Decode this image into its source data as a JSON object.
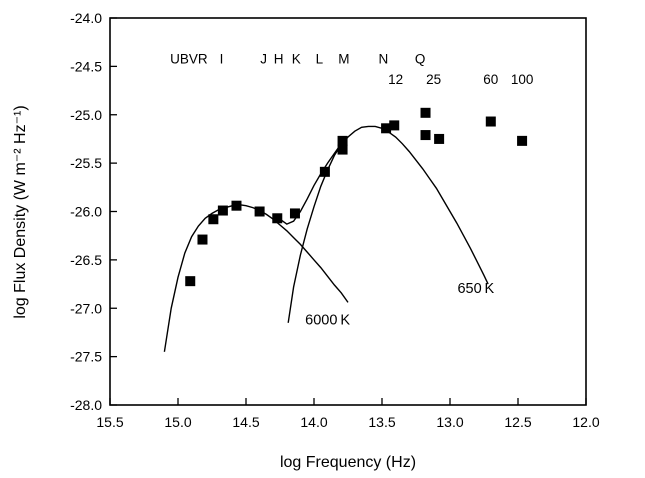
{
  "chart_data": {
    "type": "scatter",
    "title": "",
    "xlabel": "log Frequency (Hz)",
    "ylabel": "log Flux Density (W m⁻² Hz⁻¹)",
    "xlim": [
      15.5,
      12.0
    ],
    "ylim": [
      -28.0,
      -24.0
    ],
    "x_reversed": true,
    "grid": false,
    "x_ticks": [
      "15.5",
      "15.0",
      "14.5",
      "14.0",
      "13.5",
      "13.0",
      "12.5",
      "12.0"
    ],
    "y_ticks": [
      "-24.0",
      "-24.5",
      "-25.0",
      "-25.5",
      "-26.0",
      "-26.5",
      "-27.0",
      "-27.5",
      "-28.0"
    ],
    "band_labels": [
      {
        "text": "UBVR",
        "x": 14.92,
        "y": -24.47
      },
      {
        "text": "I",
        "x": 14.68,
        "y": -24.47
      },
      {
        "text": "J",
        "x": 14.37,
        "y": -24.47
      },
      {
        "text": "H",
        "x": 14.26,
        "y": -24.47
      },
      {
        "text": "K",
        "x": 14.13,
        "y": -24.47
      },
      {
        "text": "L",
        "x": 13.96,
        "y": -24.47
      },
      {
        "text": "M",
        "x": 13.78,
        "y": -24.47
      },
      {
        "text": "N",
        "x": 13.49,
        "y": -24.47
      },
      {
        "text": "12",
        "x": 13.4,
        "y": -24.68
      },
      {
        "text": "Q",
        "x": 13.22,
        "y": -24.47
      },
      {
        "text": "25",
        "x": 13.12,
        "y": -24.68
      },
      {
        "text": "60",
        "x": 12.7,
        "y": -24.68
      },
      {
        "text": "100",
        "x": 12.47,
        "y": -24.68
      }
    ],
    "series": [
      {
        "name": "",
        "type": "scatter",
        "marker": "square",
        "points": [
          {
            "x": 14.91,
            "y": -26.72
          },
          {
            "x": 14.82,
            "y": -26.29
          },
          {
            "x": 14.74,
            "y": -26.08
          },
          {
            "x": 14.67,
            "y": -25.99
          },
          {
            "x": 14.57,
            "y": -25.94
          },
          {
            "x": 14.4,
            "y": -26.0
          },
          {
            "x": 14.27,
            "y": -26.07
          },
          {
            "x": 14.14,
            "y": -26.02
          },
          {
            "x": 13.92,
            "y": -25.59
          },
          {
            "x": 13.79,
            "y": -25.27
          },
          {
            "x": 13.79,
            "y": -25.36
          },
          {
            "x": 13.47,
            "y": -25.14
          },
          {
            "x": 13.41,
            "y": -25.11
          },
          {
            "x": 13.18,
            "y": -24.98
          },
          {
            "x": 13.18,
            "y": -25.21
          },
          {
            "x": 13.08,
            "y": -25.25
          },
          {
            "x": 12.7,
            "y": -25.07
          },
          {
            "x": 12.47,
            "y": -25.27
          }
        ]
      },
      {
        "name": "6000 K",
        "type": "line",
        "points": [
          {
            "x": 15.1,
            "y": -27.45
          },
          {
            "x": 15.05,
            "y": -27.0
          },
          {
            "x": 15.0,
            "y": -26.68
          },
          {
            "x": 14.95,
            "y": -26.43
          },
          {
            "x": 14.9,
            "y": -26.26
          },
          {
            "x": 14.85,
            "y": -26.15
          },
          {
            "x": 14.8,
            "y": -26.07
          },
          {
            "x": 14.75,
            "y": -26.02
          },
          {
            "x": 14.7,
            "y": -25.98
          },
          {
            "x": 14.65,
            "y": -25.96
          },
          {
            "x": 14.6,
            "y": -25.94
          },
          {
            "x": 14.55,
            "y": -25.93
          },
          {
            "x": 14.5,
            "y": -25.94
          },
          {
            "x": 14.45,
            "y": -25.96
          },
          {
            "x": 14.4,
            "y": -25.99
          },
          {
            "x": 14.35,
            "y": -26.03
          },
          {
            "x": 14.3,
            "y": -26.08
          },
          {
            "x": 14.25,
            "y": -26.14
          },
          {
            "x": 14.2,
            "y": -26.2
          },
          {
            "x": 14.15,
            "y": -26.27
          },
          {
            "x": 14.1,
            "y": -26.34
          },
          {
            "x": 14.05,
            "y": -26.42
          },
          {
            "x": 14.0,
            "y": -26.5
          },
          {
            "x": 13.95,
            "y": -26.58
          },
          {
            "x": 13.9,
            "y": -26.67
          },
          {
            "x": 13.85,
            "y": -26.76
          },
          {
            "x": 13.8,
            "y": -26.84
          },
          {
            "x": 13.75,
            "y": -26.94
          }
        ]
      },
      {
        "name": "650 K",
        "type": "line",
        "points": [
          {
            "x": 14.19,
            "y": -27.15
          },
          {
            "x": 14.15,
            "y": -26.78
          },
          {
            "x": 14.1,
            "y": -26.45
          },
          {
            "x": 14.05,
            "y": -26.18
          },
          {
            "x": 14.0,
            "y": -25.95
          },
          {
            "x": 13.95,
            "y": -25.74
          },
          {
            "x": 13.9,
            "y": -25.57
          },
          {
            "x": 13.85,
            "y": -25.42
          },
          {
            "x": 13.8,
            "y": -25.31
          },
          {
            "x": 13.75,
            "y": -25.23
          },
          {
            "x": 13.7,
            "y": -25.17
          },
          {
            "x": 13.65,
            "y": -25.13
          },
          {
            "x": 13.6,
            "y": -25.12
          },
          {
            "x": 13.55,
            "y": -25.12
          },
          {
            "x": 13.5,
            "y": -25.14
          },
          {
            "x": 13.45,
            "y": -25.18
          },
          {
            "x": 13.4,
            "y": -25.23
          },
          {
            "x": 13.35,
            "y": -25.3
          },
          {
            "x": 13.3,
            "y": -25.38
          },
          {
            "x": 13.25,
            "y": -25.47
          },
          {
            "x": 13.2,
            "y": -25.56
          },
          {
            "x": 13.15,
            "y": -25.66
          },
          {
            "x": 13.1,
            "y": -25.76
          },
          {
            "x": 13.05,
            "y": -25.88
          },
          {
            "x": 13.0,
            "y": -26.0
          },
          {
            "x": 12.95,
            "y": -26.12
          },
          {
            "x": 12.9,
            "y": -26.25
          },
          {
            "x": 12.85,
            "y": -26.38
          },
          {
            "x": 12.8,
            "y": -26.52
          },
          {
            "x": 12.75,
            "y": -26.66
          },
          {
            "x": 12.72,
            "y": -26.75
          }
        ]
      },
      {
        "name": "",
        "type": "line",
        "points": [
          {
            "x": 14.25,
            "y": -26.08
          },
          {
            "x": 14.2,
            "y": -26.13
          },
          {
            "x": 14.15,
            "y": -26.1
          },
          {
            "x": 14.1,
            "y": -26.0
          },
          {
            "x": 14.05,
            "y": -25.87
          },
          {
            "x": 14.0,
            "y": -25.73
          },
          {
            "x": 13.95,
            "y": -25.61
          },
          {
            "x": 13.9,
            "y": -25.5
          },
          {
            "x": 13.85,
            "y": -25.4
          },
          {
            "x": 13.8,
            "y": -25.3
          }
        ]
      }
    ],
    "curve_labels": [
      {
        "text": "6000 K",
        "x": 13.9,
        "y": -27.17
      },
      {
        "text": "650 K",
        "x": 12.81,
        "y": -26.84
      }
    ]
  }
}
